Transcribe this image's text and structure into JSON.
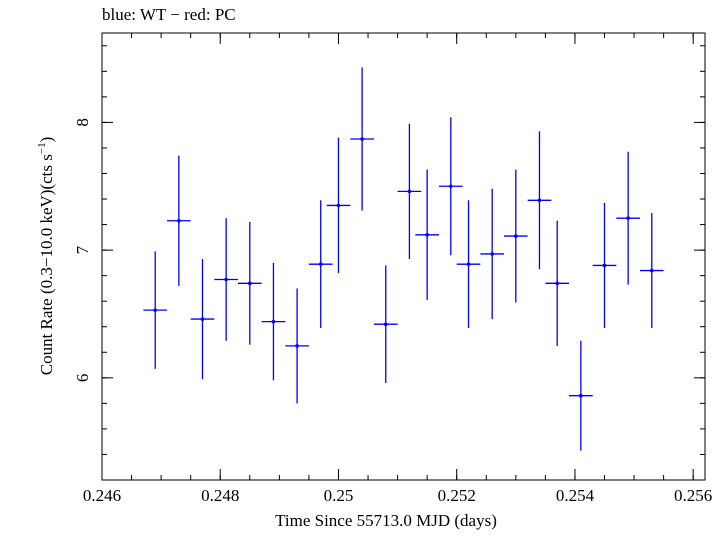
{
  "chart_data": {
    "type": "scatter",
    "title": "blue: WT − red: PC",
    "xlabel": "Time Since 55713.0 MJD (days)",
    "ylabel_main": "Count Rate (0.3−10.0 keV)(cts s",
    "ylabel_sup": "−1",
    "ylabel_end": ")",
    "xlim": [
      0.246,
      0.2562
    ],
    "ylim": [
      5.2,
      8.7
    ],
    "xticks": [
      0.246,
      0.248,
      0.25,
      0.252,
      0.254,
      0.256
    ],
    "xtick_labels": [
      "0.246",
      "0.248",
      "0.25",
      "0.252",
      "0.254",
      "0.256"
    ],
    "yticks": [
      6,
      7,
      8
    ],
    "ytick_labels": [
      "6",
      "7",
      "8"
    ],
    "grid": false,
    "series": [
      {
        "name": "WT",
        "color": "#0000ff",
        "x": [
          0.2469,
          0.2473,
          0.2477,
          0.2481,
          0.2485,
          0.2489,
          0.2493,
          0.2497,
          0.25,
          0.2504,
          0.2508,
          0.2512,
          0.2515,
          0.2519,
          0.2522,
          0.2526,
          0.253,
          0.2534,
          0.2537,
          0.2541,
          0.2545,
          0.2549,
          0.2553
        ],
        "y": [
          6.53,
          7.23,
          6.46,
          6.77,
          6.74,
          6.44,
          6.25,
          6.89,
          7.35,
          7.87,
          6.42,
          7.46,
          7.12,
          7.5,
          6.89,
          6.97,
          7.11,
          7.39,
          6.74,
          5.86,
          6.88,
          7.25,
          6.84
        ],
        "yerr": [
          0.46,
          0.51,
          0.47,
          0.48,
          0.48,
          0.46,
          0.45,
          0.5,
          0.53,
          0.56,
          0.46,
          0.53,
          0.51,
          0.54,
          0.5,
          0.51,
          0.52,
          0.54,
          0.49,
          0.43,
          0.49,
          0.52,
          0.45
        ],
        "xerr": [
          0.0002,
          0.0002,
          0.0002,
          0.0002,
          0.0002,
          0.0002,
          0.0002,
          0.0002,
          0.0002,
          0.0002,
          0.0002,
          0.0002,
          0.0002,
          0.0002,
          0.0002,
          0.0002,
          0.0002,
          0.0002,
          0.0002,
          0.0002,
          0.0002,
          0.0002,
          0.0002
        ]
      }
    ]
  }
}
